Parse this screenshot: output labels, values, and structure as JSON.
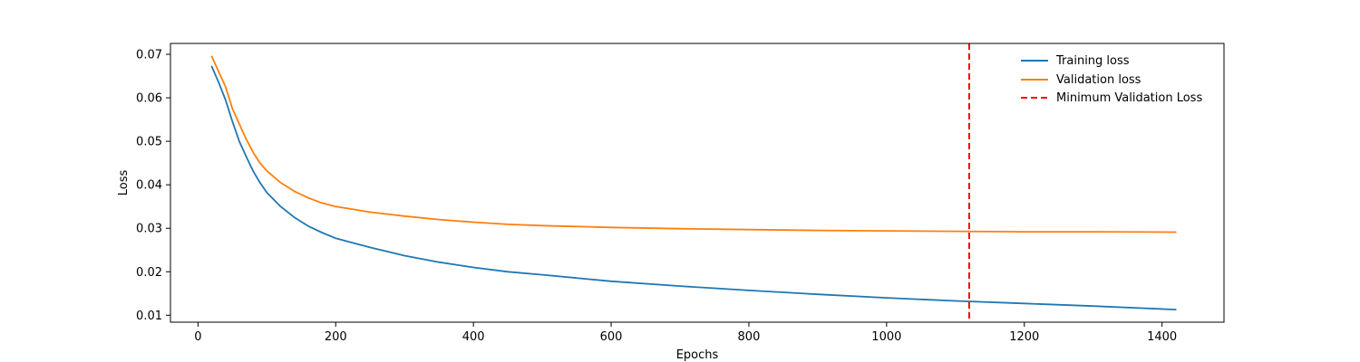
{
  "chart_data": {
    "type": "line",
    "title": "",
    "xlabel": "Epochs",
    "ylabel": "Loss",
    "xlim": [
      -40,
      1490
    ],
    "ylim": [
      0.0084,
      0.0725
    ],
    "xticks": [
      0,
      200,
      400,
      600,
      800,
      1000,
      1200,
      1400
    ],
    "yticks": [
      0.01,
      0.02,
      0.03,
      0.04,
      0.05,
      0.06,
      0.07
    ],
    "x_tick_labels": [
      "0",
      "200",
      "400",
      "600",
      "800",
      "1000",
      "1200",
      "1400"
    ],
    "y_tick_labels": [
      "0.01",
      "0.02",
      "0.03",
      "0.04",
      "0.05",
      "0.06",
      "0.07"
    ],
    "grid": false,
    "legend_position": "top-right",
    "series": [
      {
        "name": "Training loss",
        "color": "#1f77b4",
        "x": [
          20,
          30,
          40,
          50,
          60,
          70,
          80,
          90,
          100,
          120,
          140,
          160,
          180,
          200,
          250,
          300,
          350,
          400,
          450,
          500,
          600,
          700,
          800,
          900,
          1000,
          1100,
          1200,
          1300,
          1420
        ],
        "y": [
          0.0672,
          0.0635,
          0.0595,
          0.0545,
          0.05,
          0.0465,
          0.0432,
          0.0405,
          0.0382,
          0.035,
          0.0325,
          0.0305,
          0.029,
          0.0277,
          0.0256,
          0.0237,
          0.0222,
          0.021,
          0.02,
          0.0193,
          0.0178,
          0.0167,
          0.0157,
          0.0148,
          0.014,
          0.0133,
          0.0127,
          0.0121,
          0.0113
        ]
      },
      {
        "name": "Validation loss",
        "color": "#ff7f0e",
        "x": [
          20,
          30,
          40,
          50,
          60,
          70,
          80,
          90,
          100,
          120,
          140,
          160,
          180,
          200,
          250,
          300,
          350,
          400,
          450,
          500,
          600,
          700,
          800,
          900,
          1000,
          1100,
          1200,
          1300,
          1420
        ],
        "y": [
          0.0695,
          0.066,
          0.0625,
          0.0575,
          0.054,
          0.0505,
          0.0475,
          0.045,
          0.0432,
          0.0405,
          0.0385,
          0.037,
          0.0358,
          0.035,
          0.0337,
          0.0328,
          0.032,
          0.0314,
          0.0309,
          0.0306,
          0.0302,
          0.0299,
          0.0297,
          0.0295,
          0.0294,
          0.0293,
          0.0292,
          0.0292,
          0.0291
        ]
      }
    ],
    "reference_line": {
      "name": "Minimum Validation Loss",
      "orientation": "vertical",
      "x": 1120,
      "style": "dashed",
      "color": "#ff0000"
    }
  }
}
